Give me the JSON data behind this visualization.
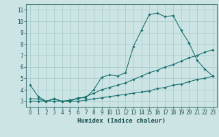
{
  "xlabel": "Humidex (Indice chaleur)",
  "ylabel": "",
  "bg_color": "#cde4e4",
  "grid_color": "#aacece",
  "line_color": "#1a7070",
  "xlim": [
    -0.5,
    23.5
  ],
  "ylim": [
    2.5,
    11.5
  ],
  "xticks": [
    0,
    1,
    2,
    3,
    4,
    5,
    6,
    7,
    8,
    9,
    10,
    11,
    12,
    13,
    14,
    15,
    16,
    17,
    18,
    19,
    20,
    21,
    22,
    23
  ],
  "yticks": [
    3,
    4,
    5,
    6,
    7,
    8,
    9,
    10,
    11
  ],
  "line1_x": [
    0,
    1,
    2,
    3,
    4,
    5,
    6,
    7,
    8,
    9,
    10,
    11,
    12,
    13,
    14,
    15,
    16,
    17,
    18,
    19,
    20,
    21,
    22,
    23
  ],
  "line1_y": [
    4.4,
    3.4,
    3.0,
    3.2,
    3.0,
    3.0,
    3.3,
    3.3,
    4.0,
    5.1,
    5.3,
    5.2,
    5.5,
    7.8,
    9.2,
    10.6,
    10.7,
    10.4,
    10.5,
    9.2,
    8.1,
    6.6,
    5.8,
    5.2
  ],
  "line2_x": [
    0,
    1,
    2,
    3,
    4,
    5,
    6,
    7,
    8,
    9,
    10,
    11,
    12,
    13,
    14,
    15,
    16,
    17,
    18,
    19,
    20,
    21,
    22,
    23
  ],
  "line2_y": [
    3.2,
    3.2,
    3.0,
    3.2,
    3.0,
    3.1,
    3.2,
    3.4,
    3.7,
    4.0,
    4.2,
    4.4,
    4.6,
    4.9,
    5.2,
    5.5,
    5.7,
    6.0,
    6.2,
    6.5,
    6.8,
    7.0,
    7.3,
    7.5
  ],
  "line3_x": [
    0,
    1,
    2,
    3,
    4,
    5,
    6,
    7,
    8,
    9,
    10,
    11,
    12,
    13,
    14,
    15,
    16,
    17,
    18,
    19,
    20,
    21,
    22,
    23
  ],
  "line3_y": [
    3.0,
    3.0,
    3.0,
    3.0,
    3.0,
    3.0,
    3.0,
    3.1,
    3.2,
    3.3,
    3.4,
    3.5,
    3.6,
    3.7,
    3.8,
    3.9,
    4.1,
    4.2,
    4.4,
    4.5,
    4.7,
    4.9,
    5.0,
    5.2
  ],
  "tick_fontsize": 5.5,
  "label_fontsize": 6.5
}
